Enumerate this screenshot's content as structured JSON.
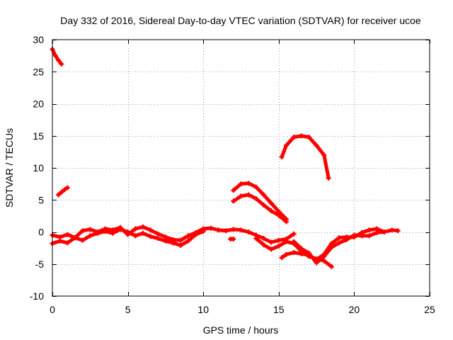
{
  "chart_data": {
    "type": "scatter",
    "title": "Day 332 of 2016, Sidereal Day-to-day VTEC variation (SDTVAR) for receiver ucoe",
    "xlabel": "GPS time / hours",
    "ylabel": "SDTVAR / TECUs",
    "xlim": [
      0,
      25
    ],
    "ylim": [
      -10,
      30
    ],
    "xticks": [
      0,
      5,
      10,
      15,
      20,
      25
    ],
    "yticks": [
      -10,
      -5,
      0,
      5,
      10,
      15,
      20,
      25,
      30
    ],
    "grid": true,
    "colors": {
      "series": "#ff0000",
      "grid": "#a0a0a0",
      "axis": "#000000"
    },
    "series": [
      {
        "name": "arc-1",
        "x": [
          0.0,
          0.2,
          0.4,
          0.6
        ],
        "y": [
          28.5,
          27.5,
          26.8,
          26.2
        ]
      },
      {
        "name": "arc-2",
        "x": [
          0.4,
          0.6,
          0.8,
          1.0
        ],
        "y": [
          5.8,
          6.2,
          6.6,
          6.9
        ]
      },
      {
        "name": "arc-3",
        "x": [
          0.0,
          0.5,
          1.0,
          1.5,
          2.0,
          2.5,
          3.0,
          3.5,
          4.0,
          4.5,
          5.0,
          5.5,
          6.0,
          6.5,
          7.0,
          7.5,
          8.0,
          8.5,
          9.0,
          9.5,
          10.0,
          10.5,
          11.0,
          11.5,
          12.0,
          12.5,
          13.0,
          13.5,
          14.0,
          14.5,
          15.0,
          15.5,
          16.0
        ],
        "y": [
          -0.5,
          -0.8,
          -0.4,
          -0.9,
          0.2,
          0.4,
          0.0,
          0.5,
          0.3,
          0.7,
          -0.4,
          0.5,
          0.8,
          0.3,
          -0.3,
          -0.8,
          -1.2,
          -1.3,
          -0.6,
          -0.1,
          0.5,
          0.6,
          0.3,
          0.2,
          0.4,
          0.3,
          0.0,
          -0.5,
          -1.0,
          -1.6,
          -1.3,
          -1.1,
          -0.3
        ]
      },
      {
        "name": "arc-4",
        "x": [
          0.0,
          0.5,
          1.0,
          1.5,
          2.0,
          2.5,
          3.0,
          3.5,
          4.0,
          4.5,
          5.0,
          5.5,
          6.0,
          6.5,
          7.0,
          7.5,
          8.0,
          8.5,
          9.0,
          9.5,
          10.0
        ],
        "y": [
          -1.8,
          -1.4,
          -1.7,
          -0.9,
          -1.3,
          -0.6,
          -0.2,
          0.1,
          -0.2,
          0.4,
          0.0,
          -0.6,
          -0.2,
          -0.7,
          -1.0,
          -1.4,
          -1.7,
          -2.1,
          -1.4,
          -0.4,
          0.1
        ]
      },
      {
        "name": "arc-5",
        "x": [
          11.8,
          12.0
        ],
        "y": [
          -1.1,
          -1.1
        ]
      },
      {
        "name": "arc-6",
        "x": [
          12.0,
          12.5,
          13.0,
          13.5,
          14.0,
          14.5,
          15.0,
          15.5
        ],
        "y": [
          6.5,
          7.5,
          7.6,
          7.0,
          5.8,
          4.5,
          3.2,
          2.0
        ]
      },
      {
        "name": "arc-7",
        "x": [
          12.0,
          12.5,
          13.0,
          13.5,
          14.0,
          14.5,
          15.0,
          15.5
        ],
        "y": [
          4.8,
          5.6,
          5.8,
          5.2,
          4.2,
          3.3,
          2.6,
          1.6
        ]
      },
      {
        "name": "arc-8",
        "x": [
          13.5,
          14.0,
          14.5,
          15.0,
          15.5,
          16.0,
          16.5,
          17.0,
          17.5,
          18.0,
          18.5
        ],
        "y": [
          -1.0,
          -2.0,
          -2.7,
          -2.2,
          -1.5,
          -1.8,
          -3.0,
          -3.8,
          -4.2,
          -4.5,
          -5.4
        ]
      },
      {
        "name": "arc-9",
        "x": [
          15.2,
          15.5,
          16.0,
          16.5,
          17.0,
          17.5,
          18.0,
          18.5,
          19.0,
          19.5,
          20.0,
          20.5,
          21.0,
          21.5,
          22.0,
          22.5,
          22.9
        ],
        "y": [
          -4.0,
          -3.5,
          -3.2,
          -3.4,
          -3.6,
          -4.3,
          -3.5,
          -1.8,
          -0.9,
          -0.8,
          -0.8,
          -0.1,
          0.3,
          0.5,
          0.0,
          0.3,
          0.2
        ]
      },
      {
        "name": "arc-10",
        "x": [
          16.0,
          16.5,
          17.0,
          17.5,
          18.0,
          18.5,
          19.0,
          19.5,
          20.0,
          20.5,
          21.0,
          21.5,
          22.0
        ],
        "y": [
          -1.5,
          -2.6,
          -3.3,
          -4.8,
          -3.8,
          -2.4,
          -1.7,
          -1.2,
          -0.5,
          -0.6,
          -0.6,
          -0.1,
          0.0
        ]
      },
      {
        "name": "arc-11",
        "x": [
          15.2,
          15.5,
          16.0,
          16.5,
          17.0,
          17.5,
          18.0,
          18.3
        ],
        "y": [
          11.7,
          13.5,
          14.8,
          15.0,
          14.8,
          13.5,
          12.0,
          8.4
        ]
      }
    ]
  }
}
